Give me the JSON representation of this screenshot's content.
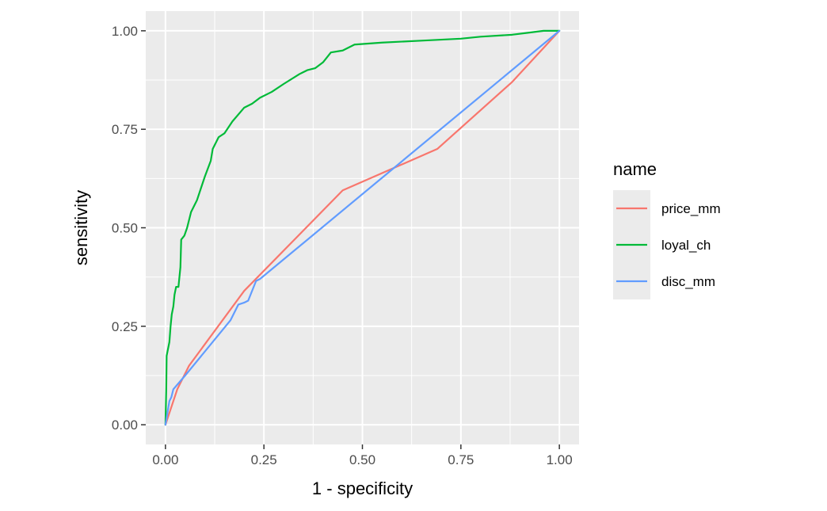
{
  "chart_data": {
    "type": "line",
    "title": "",
    "xlabel": "1 - specificity",
    "ylabel": "sensitivity",
    "xlim": [
      -0.05,
      1.05
    ],
    "ylim": [
      -0.05,
      1.05
    ],
    "x_ticks": [
      0,
      0.25,
      0.5,
      0.75,
      1
    ],
    "x_tick_labels": [
      "0.00",
      "0.25",
      "0.50",
      "0.75",
      "1.00"
    ],
    "y_ticks": [
      0,
      0.25,
      0.5,
      0.75,
      1
    ],
    "y_tick_labels": [
      "0.00",
      "0.25",
      "0.50",
      "0.75",
      "1.00"
    ],
    "grid": true,
    "legend": {
      "title": "name",
      "position": "right"
    },
    "series": [
      {
        "name": "price_mm",
        "color": "#F8766D",
        "points": [
          [
            0,
            0
          ],
          [
            0.03,
            0.09
          ],
          [
            0.06,
            0.15
          ],
          [
            0.2,
            0.34
          ],
          [
            0.45,
            0.595
          ],
          [
            0.69,
            0.7
          ],
          [
            0.88,
            0.87
          ],
          [
            1,
            1
          ]
        ]
      },
      {
        "name": "loyal_ch",
        "color": "#00BA38",
        "points": [
          [
            0,
            0
          ],
          [
            0.002,
            0.09
          ],
          [
            0.003,
            0.175
          ],
          [
            0.006,
            0.19
          ],
          [
            0.01,
            0.21
          ],
          [
            0.013,
            0.25
          ],
          [
            0.016,
            0.28
          ],
          [
            0.02,
            0.3
          ],
          [
            0.023,
            0.33
          ],
          [
            0.027,
            0.35
          ],
          [
            0.033,
            0.35
          ],
          [
            0.038,
            0.4
          ],
          [
            0.04,
            0.47
          ],
          [
            0.048,
            0.48
          ],
          [
            0.055,
            0.5
          ],
          [
            0.065,
            0.54
          ],
          [
            0.08,
            0.57
          ],
          [
            0.09,
            0.6
          ],
          [
            0.1,
            0.63
          ],
          [
            0.115,
            0.67
          ],
          [
            0.12,
            0.7
          ],
          [
            0.135,
            0.73
          ],
          [
            0.15,
            0.74
          ],
          [
            0.17,
            0.77
          ],
          [
            0.2,
            0.805
          ],
          [
            0.22,
            0.815
          ],
          [
            0.24,
            0.83
          ],
          [
            0.27,
            0.845
          ],
          [
            0.3,
            0.865
          ],
          [
            0.34,
            0.89
          ],
          [
            0.36,
            0.9
          ],
          [
            0.38,
            0.905
          ],
          [
            0.4,
            0.92
          ],
          [
            0.42,
            0.945
          ],
          [
            0.45,
            0.95
          ],
          [
            0.48,
            0.965
          ],
          [
            0.55,
            0.97
          ],
          [
            0.65,
            0.975
          ],
          [
            0.75,
            0.98
          ],
          [
            0.8,
            0.985
          ],
          [
            0.88,
            0.99
          ],
          [
            0.92,
            0.995
          ],
          [
            0.96,
            1
          ],
          [
            1,
            1
          ]
        ]
      },
      {
        "name": "disc_mm",
        "color": "#619CFF",
        "points": [
          [
            0,
            0
          ],
          [
            0.005,
            0.03
          ],
          [
            0.01,
            0.06
          ],
          [
            0.015,
            0.07
          ],
          [
            0.02,
            0.09
          ],
          [
            0.05,
            0.125
          ],
          [
            0.165,
            0.265
          ],
          [
            0.185,
            0.305
          ],
          [
            0.2,
            0.31
          ],
          [
            0.21,
            0.315
          ],
          [
            0.23,
            0.365
          ],
          [
            0.24,
            0.37
          ],
          [
            1,
            1
          ]
        ]
      }
    ]
  }
}
